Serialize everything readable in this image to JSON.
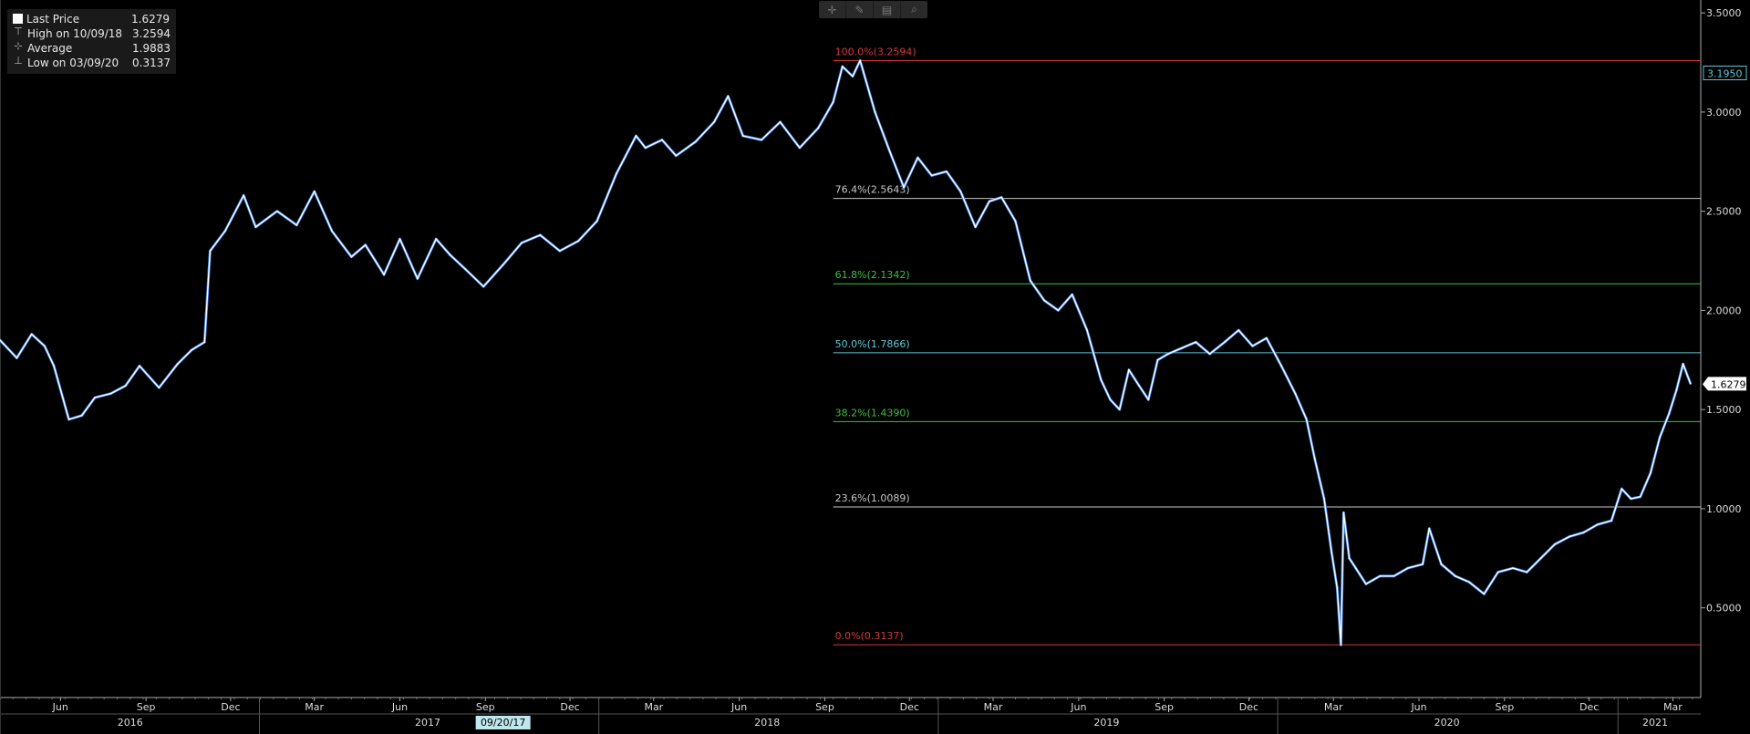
{
  "legend": {
    "items": [
      {
        "label": "Last Price",
        "value": "1.6279",
        "icon": "white-square-icon"
      },
      {
        "label": "High on 10/09/18",
        "value": "3.2594",
        "icon": "high-marker-icon"
      },
      {
        "label": "Average",
        "value": "1.9883",
        "icon": "average-line-icon"
      },
      {
        "label": "Low on 03/09/20",
        "value": "0.3137",
        "icon": "low-marker-icon"
      }
    ]
  },
  "toolbar": {
    "buttons": [
      {
        "name": "crosshair",
        "icon": "crosshair-icon",
        "glyph": "✛"
      },
      {
        "name": "draw",
        "icon": "pencil-icon",
        "glyph": "✎"
      },
      {
        "name": "table",
        "icon": "table-icon",
        "glyph": "▤"
      },
      {
        "name": "zoom",
        "icon": "magnifier-icon",
        "glyph": "⌕"
      }
    ]
  },
  "chart_data": {
    "type": "line",
    "title": "",
    "ylim": [
      0,
      3.5
    ],
    "y_ticks": [
      0.5,
      1.0,
      1.5,
      2.0,
      2.5,
      3.0,
      3.5
    ],
    "y_tick_labels": [
      "0.5000",
      "1.0000",
      "1.5000",
      "2.0000",
      "2.5000",
      "3.0000",
      "3.5000"
    ],
    "x_range": [
      "2016-03-28",
      "2021-03-31"
    ],
    "month_ticks": [
      {
        "label": "Jun",
        "date": "2016-06-01"
      },
      {
        "label": "Sep",
        "date": "2016-09-01"
      },
      {
        "label": "Dec",
        "date": "2016-12-01"
      },
      {
        "label": "Mar",
        "date": "2017-03-01"
      },
      {
        "label": "Jun",
        "date": "2017-06-01"
      },
      {
        "label": "Sep",
        "date": "2017-09-01"
      },
      {
        "label": "Dec",
        "date": "2017-12-01"
      },
      {
        "label": "Mar",
        "date": "2018-03-01"
      },
      {
        "label": "Jun",
        "date": "2018-06-01"
      },
      {
        "label": "Sep",
        "date": "2018-09-01"
      },
      {
        "label": "Dec",
        "date": "2018-12-01"
      },
      {
        "label": "Mar",
        "date": "2019-03-01"
      },
      {
        "label": "Jun",
        "date": "2019-06-01"
      },
      {
        "label": "Sep",
        "date": "2019-09-01"
      },
      {
        "label": "Dec",
        "date": "2019-12-01"
      },
      {
        "label": "Mar",
        "date": "2020-03-01"
      },
      {
        "label": "Jun",
        "date": "2020-06-01"
      },
      {
        "label": "Sep",
        "date": "2020-09-01"
      },
      {
        "label": "Dec",
        "date": "2020-12-01"
      },
      {
        "label": "Mar",
        "date": "2021-03-01"
      }
    ],
    "year_labels": [
      {
        "label": "2016",
        "date": "2016-08-15"
      },
      {
        "label": "2017",
        "date": "2017-07-01"
      },
      {
        "label": "2018",
        "date": "2018-07-01"
      },
      {
        "label": "2019",
        "date": "2019-07-01"
      },
      {
        "label": "2020",
        "date": "2020-07-01"
      },
      {
        "label": "2021",
        "date": "2021-02-10"
      }
    ],
    "year_dividers": [
      "2017-01-01",
      "2018-01-01",
      "2019-01-01",
      "2020-01-01",
      "2021-01-01"
    ],
    "cursor_date_label": {
      "label": "09/20/17",
      "date": "2017-09-20"
    },
    "price_tags": [
      {
        "value": 3.195,
        "label": "3.1950",
        "style": "outline"
      },
      {
        "value": 1.6279,
        "label": "1.6279",
        "style": "solid"
      }
    ],
    "fib_levels": [
      {
        "label": "100.0%(3.2594)",
        "value": 3.2594,
        "color": "#d43a3a"
      },
      {
        "label": "76.4%(2.5643)",
        "value": 2.5643,
        "color": "#c8c8c8"
      },
      {
        "label": "61.8%(2.1342)",
        "value": 2.1342,
        "color": "#3fbf3f"
      },
      {
        "label": "50.0%(1.7866)",
        "value": 1.7866,
        "color": "#5ec8d8"
      },
      {
        "label": "38.2%(1.4390)",
        "value": 1.439,
        "color": "#3fbf3f"
      },
      {
        "label": "23.6%(1.0089)",
        "value": 1.0089,
        "color": "#c8c8c8"
      },
      {
        "label": "0.0%(0.3137)",
        "value": 0.3137,
        "color": "#d43a3a"
      }
    ],
    "fib_start_date": "2018-09-10",
    "series": [
      {
        "color": "#ffffff",
        "x": [
          "2016-03-28",
          "2016-04-15",
          "2016-05-01",
          "2016-05-15",
          "2016-05-25",
          "2016-06-10",
          "2016-06-24",
          "2016-07-08",
          "2016-07-25",
          "2016-08-10",
          "2016-08-25",
          "2016-09-15",
          "2016-10-05",
          "2016-10-20",
          "2016-11-03",
          "2016-11-09",
          "2016-11-25",
          "2016-12-15",
          "2016-12-28",
          "2017-01-20",
          "2017-02-10",
          "2017-03-01",
          "2017-03-20",
          "2017-04-10",
          "2017-04-25",
          "2017-05-15",
          "2017-06-01",
          "2017-06-20",
          "2017-07-10",
          "2017-07-25",
          "2017-08-10",
          "2017-08-30",
          "2017-09-20",
          "2017-10-10",
          "2017-10-30",
          "2017-11-20",
          "2017-12-10",
          "2017-12-30",
          "2018-01-20",
          "2018-02-10",
          "2018-02-20",
          "2018-03-10",
          "2018-03-25",
          "2018-04-15",
          "2018-05-05",
          "2018-05-20",
          "2018-06-05",
          "2018-06-25",
          "2018-07-15",
          "2018-08-05",
          "2018-08-25",
          "2018-09-10",
          "2018-09-20",
          "2018-10-01",
          "2018-10-09",
          "2018-10-25",
          "2018-11-10",
          "2018-11-25",
          "2018-12-10",
          "2018-12-25",
          "2019-01-10",
          "2019-01-25",
          "2019-02-10",
          "2019-02-25",
          "2019-03-10",
          "2019-03-25",
          "2019-04-10",
          "2019-04-25",
          "2019-05-10",
          "2019-05-25",
          "2019-06-10",
          "2019-06-25",
          "2019-07-05",
          "2019-07-15",
          "2019-07-25",
          "2019-08-05",
          "2019-08-15",
          "2019-08-25",
          "2019-09-05",
          "2019-09-20",
          "2019-10-05",
          "2019-10-20",
          "2019-11-05",
          "2019-11-20",
          "2019-12-05",
          "2019-12-20",
          "2020-01-05",
          "2020-01-20",
          "2020-02-01",
          "2020-02-10",
          "2020-02-20",
          "2020-02-28",
          "2020-03-05",
          "2020-03-09",
          "2020-03-12",
          "2020-03-18",
          "2020-03-25",
          "2020-04-05",
          "2020-04-20",
          "2020-05-05",
          "2020-05-20",
          "2020-06-05",
          "2020-06-12",
          "2020-06-25",
          "2020-07-10",
          "2020-07-25",
          "2020-08-10",
          "2020-08-25",
          "2020-09-10",
          "2020-09-25",
          "2020-10-10",
          "2020-10-25",
          "2020-11-10",
          "2020-11-25",
          "2020-12-10",
          "2020-12-25",
          "2021-01-05",
          "2021-01-15",
          "2021-01-25",
          "2021-02-05",
          "2021-02-15",
          "2021-02-25",
          "2021-03-05",
          "2021-03-12",
          "2021-03-20"
        ],
        "y": [
          1.85,
          1.76,
          1.88,
          1.82,
          1.72,
          1.45,
          1.47,
          1.56,
          1.58,
          1.62,
          1.72,
          1.61,
          1.73,
          1.8,
          1.84,
          2.3,
          2.4,
          2.58,
          2.42,
          2.5,
          2.43,
          2.6,
          2.4,
          2.27,
          2.33,
          2.18,
          2.36,
          2.16,
          2.36,
          2.28,
          2.21,
          2.12,
          2.23,
          2.34,
          2.38,
          2.3,
          2.35,
          2.45,
          2.69,
          2.88,
          2.82,
          2.86,
          2.78,
          2.85,
          2.95,
          3.08,
          2.88,
          2.86,
          2.95,
          2.82,
          2.92,
          3.05,
          3.23,
          3.18,
          3.26,
          3.0,
          2.8,
          2.62,
          2.77,
          2.68,
          2.7,
          2.6,
          2.42,
          2.55,
          2.57,
          2.45,
          2.15,
          2.05,
          2.0,
          2.08,
          1.9,
          1.65,
          1.55,
          1.5,
          1.7,
          1.62,
          1.55,
          1.75,
          1.78,
          1.81,
          1.84,
          1.78,
          1.84,
          1.9,
          1.82,
          1.86,
          1.72,
          1.58,
          1.45,
          1.25,
          1.05,
          0.78,
          0.6,
          0.3137,
          0.98,
          0.75,
          0.7,
          0.62,
          0.66,
          0.66,
          0.7,
          0.72,
          0.9,
          0.72,
          0.66,
          0.63,
          0.57,
          0.68,
          0.7,
          0.68,
          0.75,
          0.82,
          0.86,
          0.88,
          0.92,
          0.94,
          1.1,
          1.05,
          1.06,
          1.18,
          1.36,
          1.48,
          1.6,
          1.73,
          1.63
        ]
      }
    ]
  }
}
